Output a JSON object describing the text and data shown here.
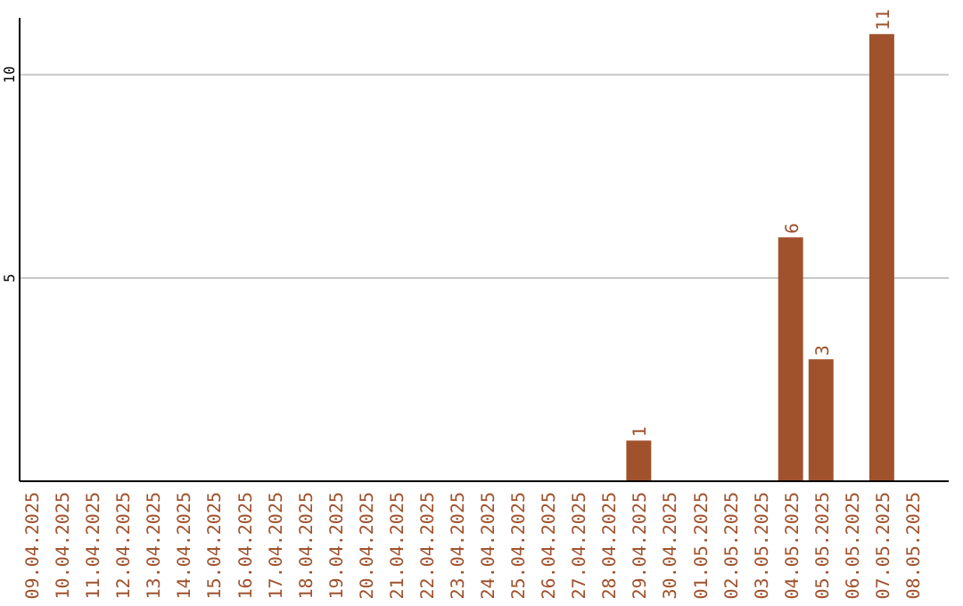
{
  "chart_data": {
    "type": "bar",
    "categories": [
      "09.04.2025",
      "10.04.2025",
      "11.04.2025",
      "12.04.2025",
      "13.04.2025",
      "14.04.2025",
      "15.04.2025",
      "16.04.2025",
      "17.04.2025",
      "18.04.2025",
      "19.04.2025",
      "20.04.2025",
      "21.04.2025",
      "22.04.2025",
      "23.04.2025",
      "24.04.2025",
      "25.04.2025",
      "26.04.2025",
      "27.04.2025",
      "28.04.2025",
      "29.04.2025",
      "30.04.2025",
      "01.05.2025",
      "02.05.2025",
      "03.05.2025",
      "04.05.2025",
      "05.05.2025",
      "06.05.2025",
      "07.05.2025",
      "08.05.2025"
    ],
    "values": [
      0,
      0,
      0,
      0,
      0,
      0,
      0,
      0,
      0,
      0,
      0,
      0,
      0,
      0,
      0,
      0,
      0,
      0,
      0,
      0,
      1,
      0,
      0,
      0,
      0,
      6,
      3,
      0,
      11,
      0
    ],
    "value_labels": [
      null,
      null,
      null,
      null,
      null,
      null,
      null,
      null,
      null,
      null,
      null,
      null,
      null,
      null,
      null,
      null,
      null,
      null,
      null,
      null,
      "1",
      null,
      null,
      null,
      null,
      "6",
      "3",
      null,
      "11",
      null
    ],
    "color": "#a0522d",
    "ylim": [
      0,
      11.4
    ],
    "yticks": [
      5,
      10
    ],
    "grid": "y"
  }
}
